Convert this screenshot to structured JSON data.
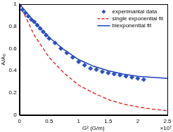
{
  "chart_data": {
    "type": "scatter",
    "x_label": "G² (G/m)",
    "y_label": "A/A₀",
    "annotations": [
      "×10⁷"
    ],
    "xlim": [
      0,
      2.5
    ],
    "xticks": [
      0,
      0.5,
      1,
      1.5,
      2,
      2.5
    ],
    "ylim": [
      0,
      1
    ],
    "yticks": [
      0,
      0.2,
      0.4,
      0.6,
      0.8,
      1
    ],
    "grid": false,
    "legend": "top-right",
    "series": [
      {
        "name": "experimantal data",
        "color": "#2a52be",
        "marker": "diamond",
        "line_style": "none",
        "x": [
          0,
          0.05,
          0.1,
          0.15,
          0.2,
          0.25,
          0.3,
          0.35,
          0.4,
          0.45,
          0.5,
          0.6,
          0.7,
          0.8,
          0.9,
          1.0,
          1.1,
          1.2,
          1.3,
          1.4,
          1.5,
          1.6,
          1.7,
          1.8,
          1.9,
          2.0,
          2.1
        ],
        "values": [
          0.99,
          0.95,
          0.92,
          0.89,
          0.86,
          0.84,
          0.81,
          0.78,
          0.75,
          0.72,
          0.69,
          0.65,
          0.6,
          0.56,
          0.52,
          0.48,
          0.45,
          0.42,
          0.41,
          0.39,
          0.38,
          0.37,
          0.36,
          0.35,
          0.34,
          0.33,
          0.32
        ]
      },
      {
        "name": "single exponential fit",
        "color": "#e8312f",
        "marker": "none",
        "line_style": "dashed",
        "x": [
          0,
          0.25,
          0.5,
          0.75,
          1,
          1.25,
          1.5,
          1.75,
          2,
          2.25,
          2.5
        ],
        "values": [
          1.0,
          0.72,
          0.52,
          0.38,
          0.27,
          0.2,
          0.14,
          0.1,
          0.074,
          0.054,
          0.039
        ]
      },
      {
        "name": "biexponential fit",
        "color": "#1f3fbf",
        "marker": "none",
        "line_style": "solid",
        "x": [
          0,
          0.25,
          0.5,
          0.75,
          1,
          1.25,
          1.5,
          1.75,
          2,
          2.25,
          2.5
        ],
        "values": [
          1.0,
          0.84,
          0.7,
          0.59,
          0.5,
          0.44,
          0.4,
          0.37,
          0.35,
          0.34,
          0.33
        ]
      }
    ]
  }
}
